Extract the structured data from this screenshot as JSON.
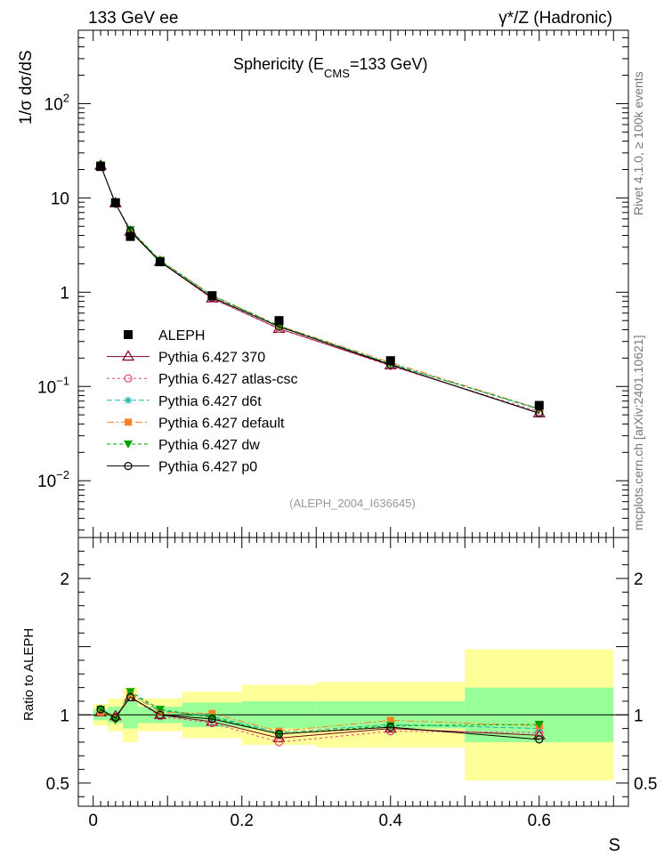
{
  "header": {
    "left": "133 GeV ee",
    "right": "γ*/Z (Hadronic)"
  },
  "side_labels": {
    "rivet": "Rivet 4.1.0, ≥ 100k events",
    "mcplots": "mcplots.cern.ch [arXiv:2401.10621]"
  },
  "chart_data": [
    {
      "type": "line",
      "title": "Sphericity (E_CMS=133 GeV)",
      "title_parts": {
        "pre": "Sphericity (E",
        "sub": "CMS",
        "post": "=133 GeV)"
      },
      "xlabel": "S",
      "ylabel": "1/σ dσ/dS",
      "yscale": "log",
      "xlim": [
        -0.02,
        0.72
      ],
      "ylim": [
        0.0025,
        600
      ],
      "watermark": "(ALEPH_2004_I636645)",
      "y_tick_labels": [
        {
          "value": 100,
          "base": "10",
          "exp": "2"
        },
        {
          "value": 10,
          "base": "10",
          "exp": ""
        },
        {
          "value": 1,
          "base": "1",
          "exp": ""
        },
        {
          "value": 0.1,
          "base": "10",
          "exp": "−1"
        },
        {
          "value": 0.01,
          "base": "10",
          "exp": "−2"
        }
      ],
      "x": [
        0.01,
        0.03,
        0.05,
        0.09,
        0.16,
        0.25,
        0.4,
        0.6
      ],
      "data": {
        "name": "ALEPH",
        "x": [
          0.01,
          0.03,
          0.05,
          0.09,
          0.16,
          0.25,
          0.4,
          0.6
        ],
        "y": [
          21.5,
          8.9,
          3.9,
          2.1,
          0.92,
          0.5,
          0.188,
          0.063
        ]
      },
      "series": [
        {
          "name": "Pythia 6.427 370",
          "color": "#800020",
          "dash": "",
          "marker": "triangle-open",
          "y": [
            22.0,
            8.8,
            4.4,
            2.1,
            0.86,
            0.41,
            0.168,
            0.052
          ]
        },
        {
          "name": "Pythia 6.427 atlas-csc",
          "color": "#e0457b",
          "dash": "3,3",
          "marker": "circle-open",
          "y": [
            22.3,
            8.7,
            4.5,
            2.1,
            0.86,
            0.41,
            0.165,
            0.054
          ]
        },
        {
          "name": "Pythia 6.427 d6t",
          "color": "#20b2aa",
          "dash": "6,3",
          "marker": "star",
          "y": [
            22.3,
            8.7,
            4.6,
            2.15,
            0.92,
            0.43,
            0.175,
            0.057
          ]
        },
        {
          "name": "Pythia 6.427 default",
          "color": "#ff7f27",
          "dash": "8,3,2,3",
          "marker": "square",
          "y": [
            22.2,
            8.8,
            4.5,
            2.16,
            0.93,
            0.44,
            0.18,
            0.058
          ]
        },
        {
          "name": "Pythia 6.427 dw",
          "color": "#00a000",
          "dash": "4,3",
          "marker": "triangle-down",
          "y": [
            22.4,
            8.6,
            4.6,
            2.18,
            0.92,
            0.44,
            0.173,
            0.058
          ]
        },
        {
          "name": "Pythia 6.427 p0",
          "color": "#000000",
          "dash": "",
          "marker": "circle-open",
          "y": [
            22.1,
            8.7,
            4.45,
            2.1,
            0.88,
            0.43,
            0.17,
            0.052
          ]
        }
      ]
    },
    {
      "type": "line",
      "title": "",
      "xlabel": "S",
      "ylabel": "Ratio to ALEPH",
      "xlim": [
        -0.02,
        0.72
      ],
      "ylim": [
        0.33,
        2.3
      ],
      "x_tick_labels": [
        {
          "value": 0,
          "label": "0"
        },
        {
          "value": 0.2,
          "label": "0.2"
        },
        {
          "value": 0.4,
          "label": "0.4"
        },
        {
          "value": 0.6,
          "label": "0.6"
        }
      ],
      "y_tick_labels": [
        {
          "value": 2,
          "label": "2"
        },
        {
          "value": 1,
          "label": "1"
        },
        {
          "value": 0.5,
          "label": "0.5"
        }
      ],
      "bins": [
        {
          "lo": 0.0,
          "hi": 0.02,
          "inner": [
            0.96,
            1.04
          ],
          "outer": [
            0.92,
            1.08
          ]
        },
        {
          "lo": 0.02,
          "hi": 0.04,
          "inner": [
            0.94,
            1.06
          ],
          "outer": [
            0.88,
            1.12
          ]
        },
        {
          "lo": 0.04,
          "hi": 0.06,
          "inner": [
            0.9,
            1.1
          ],
          "outer": [
            0.8,
            1.2
          ]
        },
        {
          "lo": 0.06,
          "hi": 0.12,
          "inner": [
            0.94,
            1.06
          ],
          "outer": [
            0.88,
            1.12
          ]
        },
        {
          "lo": 0.12,
          "hi": 0.2,
          "inner": [
            0.91,
            1.09
          ],
          "outer": [
            0.83,
            1.17
          ]
        },
        {
          "lo": 0.2,
          "hi": 0.3,
          "inner": [
            0.9,
            1.1
          ],
          "outer": [
            0.78,
            1.22
          ]
        },
        {
          "lo": 0.3,
          "hi": 0.5,
          "inner": [
            0.9,
            1.1
          ],
          "outer": [
            0.76,
            1.24
          ]
        },
        {
          "lo": 0.5,
          "hi": 0.7,
          "inner": [
            0.8,
            1.2
          ],
          "outer": [
            0.52,
            1.48
          ]
        }
      ],
      "x": [
        0.01,
        0.03,
        0.05,
        0.09,
        0.16,
        0.25,
        0.4,
        0.6
      ],
      "series": [
        {
          "name": "Pythia 6.427 370",
          "y": [
            1.02,
            0.99,
            1.13,
            1.0,
            0.95,
            0.83,
            0.9,
            0.85
          ]
        },
        {
          "name": "Pythia 6.427 atlas-csc",
          "y": [
            1.04,
            0.98,
            1.13,
            0.99,
            0.94,
            0.8,
            0.88,
            0.87
          ]
        },
        {
          "name": "Pythia 6.427 d6t",
          "y": [
            1.03,
            0.97,
            1.16,
            1.03,
            0.99,
            0.87,
            0.93,
            0.9
          ]
        },
        {
          "name": "Pythia 6.427 default",
          "y": [
            1.02,
            0.98,
            1.15,
            1.02,
            1.01,
            0.88,
            0.96,
            0.92
          ]
        },
        {
          "name": "Pythia 6.427 dw",
          "y": [
            1.04,
            0.96,
            1.17,
            1.04,
            0.98,
            0.86,
            0.92,
            0.93
          ]
        },
        {
          "name": "Pythia 6.427 p0",
          "y": [
            1.04,
            0.98,
            1.13,
            1.0,
            0.97,
            0.86,
            0.91,
            0.82
          ]
        }
      ]
    }
  ]
}
